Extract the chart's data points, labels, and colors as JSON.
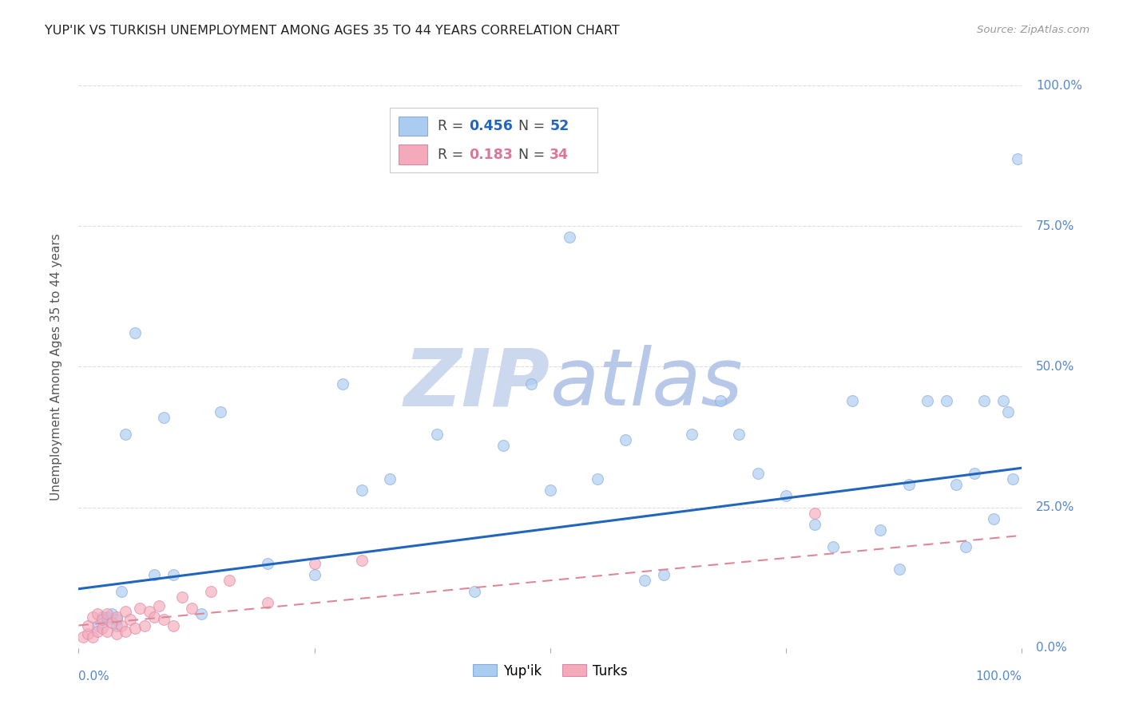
{
  "title": "YUP'IK VS TURKISH UNEMPLOYMENT AMONG AGES 35 TO 44 YEARS CORRELATION CHART",
  "source": "Source: ZipAtlas.com",
  "ylabel": "Unemployment Among Ages 35 to 44 years",
  "ytick_labels": [
    "0.0%",
    "25.0%",
    "50.0%",
    "75.0%",
    "100.0%"
  ],
  "ytick_values": [
    0.0,
    0.25,
    0.5,
    0.75,
    1.0
  ],
  "xlim": [
    0.0,
    1.0
  ],
  "ylim": [
    0.0,
    1.0
  ],
  "legend_R1": "0.456",
  "legend_N1": "52",
  "legend_R2": "0.183",
  "legend_N2": "34",
  "yupik_color": "#aaccf0",
  "yupik_edge_color": "#88aadd",
  "turk_color": "#f5aabb",
  "turk_edge_color": "#dd88aa",
  "line_blue_color": "#2266bb",
  "line_pink_color": "#dd8899",
  "watermark_zip_color": "#ccd8ee",
  "watermark_atlas_color": "#b8c8e8",
  "background_color": "#ffffff",
  "grid_color": "#dddddd",
  "yupik_x": [
    0.02,
    0.025,
    0.03,
    0.03,
    0.035,
    0.04,
    0.04,
    0.045,
    0.05,
    0.06,
    0.08,
    0.09,
    0.1,
    0.13,
    0.15,
    0.2,
    0.25,
    0.28,
    0.3,
    0.33,
    0.38,
    0.42,
    0.45,
    0.48,
    0.5,
    0.52,
    0.55,
    0.58,
    0.6,
    0.62,
    0.65,
    0.68,
    0.7,
    0.72,
    0.75,
    0.78,
    0.8,
    0.82,
    0.85,
    0.87,
    0.88,
    0.9,
    0.92,
    0.93,
    0.94,
    0.95,
    0.96,
    0.97,
    0.98,
    0.985,
    0.99,
    0.995
  ],
  "yupik_y": [
    0.04,
    0.055,
    0.05,
    0.055,
    0.06,
    0.04,
    0.05,
    0.1,
    0.38,
    0.56,
    0.13,
    0.41,
    0.13,
    0.06,
    0.42,
    0.15,
    0.13,
    0.47,
    0.28,
    0.3,
    0.38,
    0.1,
    0.36,
    0.47,
    0.28,
    0.73,
    0.3,
    0.37,
    0.12,
    0.13,
    0.38,
    0.44,
    0.38,
    0.31,
    0.27,
    0.22,
    0.18,
    0.44,
    0.21,
    0.14,
    0.29,
    0.44,
    0.44,
    0.29,
    0.18,
    0.31,
    0.44,
    0.23,
    0.44,
    0.42,
    0.3,
    0.87
  ],
  "turk_x": [
    0.005,
    0.01,
    0.01,
    0.015,
    0.015,
    0.02,
    0.02,
    0.025,
    0.025,
    0.03,
    0.03,
    0.035,
    0.04,
    0.04,
    0.045,
    0.05,
    0.05,
    0.055,
    0.06,
    0.065,
    0.07,
    0.075,
    0.08,
    0.085,
    0.09,
    0.1,
    0.11,
    0.12,
    0.14,
    0.16,
    0.2,
    0.25,
    0.3,
    0.78
  ],
  "turk_y": [
    0.02,
    0.025,
    0.04,
    0.02,
    0.055,
    0.03,
    0.06,
    0.035,
    0.05,
    0.03,
    0.06,
    0.045,
    0.025,
    0.055,
    0.04,
    0.03,
    0.065,
    0.05,
    0.035,
    0.07,
    0.04,
    0.065,
    0.055,
    0.075,
    0.05,
    0.04,
    0.09,
    0.07,
    0.1,
    0.12,
    0.08,
    0.15,
    0.155,
    0.24
  ],
  "yupik_trendline_x": [
    0.0,
    1.0
  ],
  "yupik_trendline_y": [
    0.105,
    0.32
  ],
  "turk_trendline_x": [
    0.0,
    1.0
  ],
  "turk_trendline_y": [
    0.04,
    0.2
  ],
  "marker_size": 100,
  "marker_alpha": 0.65
}
